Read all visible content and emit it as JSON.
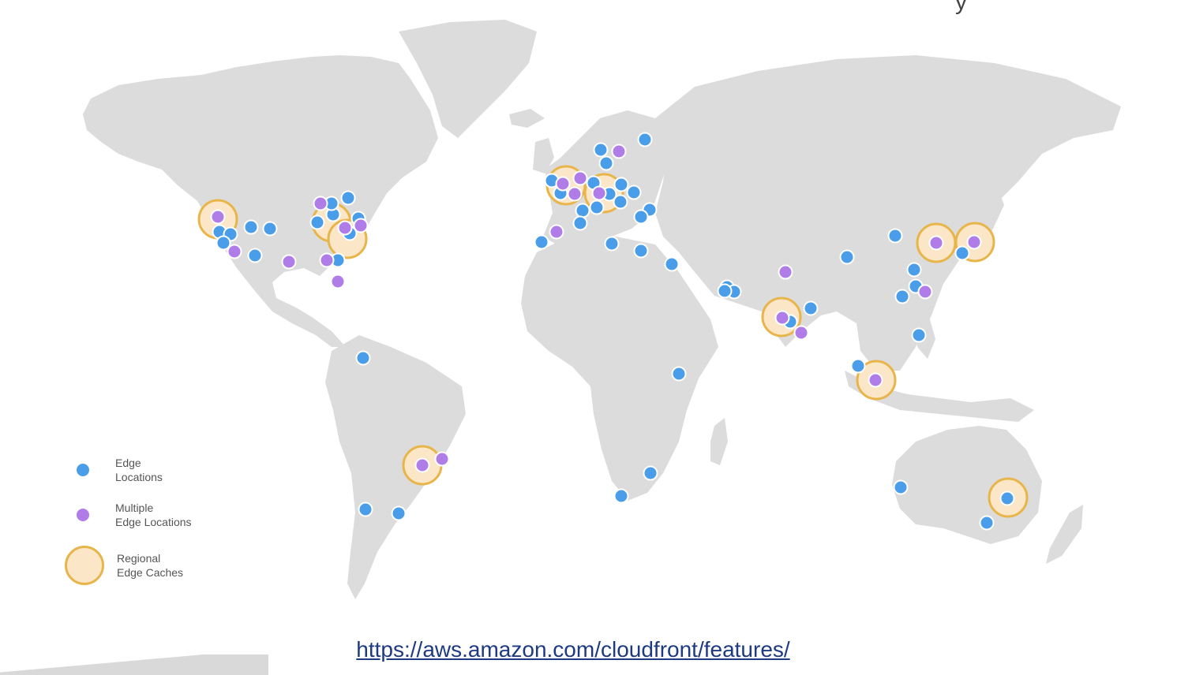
{
  "header": {
    "corner_glyph": "y"
  },
  "legend": {
    "edge_label": "Edge\nLocations",
    "multi_label": "Multiple\nEdge Locations",
    "cache_label": "Regional\nEdge Caches"
  },
  "link": {
    "url": "https://aws.amazon.com/cloudfront/features/"
  },
  "colors": {
    "land": "#dcdcdc",
    "edge": "#4a9de8",
    "multi": "#b07ce8",
    "cache_fill": "#fbe6c8",
    "cache_ring": "#e8b54a",
    "link": "#1d3a82"
  }
}
